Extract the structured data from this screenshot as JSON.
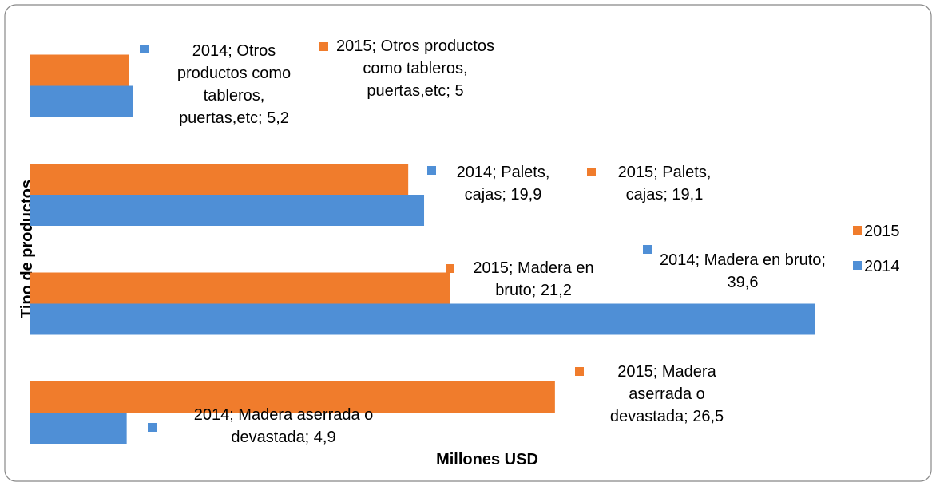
{
  "chart_data": {
    "type": "barh",
    "x_label": "Millones USD",
    "y_label": "Tipo de productos",
    "xlim": [
      0,
      40
    ],
    "legend": "right",
    "series": [
      {
        "name": "2014",
        "color": "#4f8fd6",
        "values": [
          4.9,
          39.6,
          19.9,
          5.2
        ],
        "value_labels": [
          "2014; Madera aserrada o devastada; 4,9",
          "2014; Madera en bruto; 39,6",
          "2014; Palets, cajas; 19,9",
          "2014; Otros productos como tableros, puertas,etc; 5,2"
        ]
      },
      {
        "name": "2015",
        "color": "#f07c2c",
        "values": [
          26.5,
          21.2,
          19.1,
          5
        ],
        "value_labels": [
          "2015; Madera aserrada o devastada; 26,5",
          "2015; Madera en bruto; 21,2",
          "2015; Palets, cajas; 19,1",
          "2015; Otros productos como tableros, puertas,etc; 5"
        ]
      }
    ]
  }
}
